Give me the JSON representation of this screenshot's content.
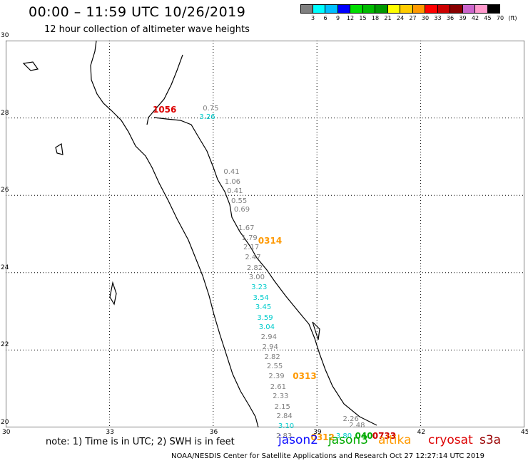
{
  "title": "00:00 – 11:59 UTC 10/26/2019",
  "subtitle": "12 hour collection of altimeter wave heights",
  "scale": {
    "colors": [
      "#808080",
      "#00ffff",
      "#00bfff",
      "#0000ff",
      "#00dd00",
      "#00bb00",
      "#009900",
      "#ffff00",
      "#ffcc00",
      "#ff9900",
      "#ff0000",
      "#cc0000",
      "#880000",
      "#cc66cc",
      "#ff99cc",
      "#000000"
    ],
    "labels": [
      "3",
      "6",
      "9",
      "12",
      "15",
      "18",
      "21",
      "24",
      "27",
      "30",
      "33",
      "36",
      "39",
      "42",
      "45",
      "70",
      "(ft)"
    ]
  },
  "axes": {
    "x_ticks": [
      "30",
      "33",
      "36",
      "39",
      "42",
      "45"
    ],
    "y_ticks": [
      "30",
      "28",
      "26",
      "24",
      "22",
      "20"
    ],
    "lon_range": [
      30,
      45
    ],
    "lat_range": [
      20,
      30
    ]
  },
  "wave_readings": [
    {
      "text": "0.75",
      "lon": 35.7,
      "lat": 28.35,
      "color": "#808080"
    },
    {
      "text": "3.26",
      "lon": 35.6,
      "lat": 28.12,
      "color": "#00cccc"
    },
    {
      "text": "0.41",
      "lon": 36.3,
      "lat": 26.7,
      "color": "#808080"
    },
    {
      "text": "1.06",
      "lon": 36.33,
      "lat": 26.45,
      "color": "#808080"
    },
    {
      "text": "0.41",
      "lon": 36.4,
      "lat": 26.2,
      "color": "#808080"
    },
    {
      "text": "0.55",
      "lon": 36.52,
      "lat": 25.95,
      "color": "#808080"
    },
    {
      "text": "0.69",
      "lon": 36.6,
      "lat": 25.72,
      "color": "#808080"
    },
    {
      "text": "1.67",
      "lon": 36.73,
      "lat": 25.25,
      "color": "#808080"
    },
    {
      "text": "1.79",
      "lon": 36.82,
      "lat": 25.0,
      "color": "#808080"
    },
    {
      "text": "2.17",
      "lon": 36.87,
      "lat": 24.75,
      "color": "#808080"
    },
    {
      "text": "2.47",
      "lon": 36.92,
      "lat": 24.5,
      "color": "#808080"
    },
    {
      "text": "2.82",
      "lon": 36.97,
      "lat": 24.22,
      "color": "#808080"
    },
    {
      "text": "3.00",
      "lon": 37.03,
      "lat": 23.97,
      "color": "#808080"
    },
    {
      "text": "3.23",
      "lon": 37.1,
      "lat": 23.72,
      "color": "#00cccc"
    },
    {
      "text": "3.54",
      "lon": 37.15,
      "lat": 23.45,
      "color": "#00cccc"
    },
    {
      "text": "3.45",
      "lon": 37.22,
      "lat": 23.2,
      "color": "#00cccc"
    },
    {
      "text": "3.59",
      "lon": 37.27,
      "lat": 22.93,
      "color": "#00cccc"
    },
    {
      "text": "3.04",
      "lon": 37.32,
      "lat": 22.68,
      "color": "#00cccc"
    },
    {
      "text": "2.94",
      "lon": 37.38,
      "lat": 22.43,
      "color": "#808080"
    },
    {
      "text": "2.94",
      "lon": 37.42,
      "lat": 22.17,
      "color": "#808080"
    },
    {
      "text": "2.82",
      "lon": 37.48,
      "lat": 21.92,
      "color": "#808080"
    },
    {
      "text": "2.55",
      "lon": 37.55,
      "lat": 21.67,
      "color": "#808080"
    },
    {
      "text": "2.39",
      "lon": 37.6,
      "lat": 21.42,
      "color": "#808080"
    },
    {
      "text": "2.61",
      "lon": 37.65,
      "lat": 21.15,
      "color": "#808080"
    },
    {
      "text": "2.33",
      "lon": 37.72,
      "lat": 20.9,
      "color": "#808080"
    },
    {
      "text": "2.15",
      "lon": 37.77,
      "lat": 20.63,
      "color": "#808080"
    },
    {
      "text": "2.84",
      "lon": 37.83,
      "lat": 20.38,
      "color": "#808080"
    },
    {
      "text": "3.10",
      "lon": 37.88,
      "lat": 20.12,
      "color": "#00cccc"
    },
    {
      "text": "2.83",
      "lon": 37.82,
      "lat": 19.87,
      "color": "#808080"
    },
    {
      "text": "2.26",
      "lon": 39.75,
      "lat": 20.32,
      "color": "#808080"
    },
    {
      "text": "2.48",
      "lon": 39.93,
      "lat": 20.14,
      "color": "#808080"
    },
    {
      "text": "3.80",
      "lon": 39.55,
      "lat": 19.87,
      "color": "#00cccc"
    }
  ],
  "track_ids": [
    {
      "text": "1056",
      "lon": 34.25,
      "lat": 28.35,
      "color": "#dd0000"
    },
    {
      "text": "0314",
      "lon": 37.3,
      "lat": 24.95,
      "color": "#ff9900"
    },
    {
      "text": "0313",
      "lon": 38.3,
      "lat": 21.45,
      "color": "#ff9900"
    },
    {
      "text": "0312",
      "lon": 38.82,
      "lat": 19.87,
      "color": "#ff9900"
    },
    {
      "text": "040",
      "lon": 40.1,
      "lat": 19.9,
      "color": "#00aa00"
    },
    {
      "text": "0733",
      "lon": 40.6,
      "lat": 19.9,
      "color": "#cc0000"
    }
  ],
  "legend": {
    "note": "note: 1) Time is in UTC; 2) SWH is in feet",
    "satellites": [
      {
        "name": "jason2",
        "color": "#1010ff"
      },
      {
        "name": "jason3",
        "color": "#00aa00"
      },
      {
        "name": "altika",
        "color": "#ff9900"
      },
      {
        "name": "cryosat",
        "color": "#dd0000"
      },
      {
        "name": "s3a",
        "color": "#990000"
      }
    ]
  },
  "credit": "NOAA/NESDIS Center for Satellite Applications and Research    Oct 27 12:27:14 UTC 2019"
}
